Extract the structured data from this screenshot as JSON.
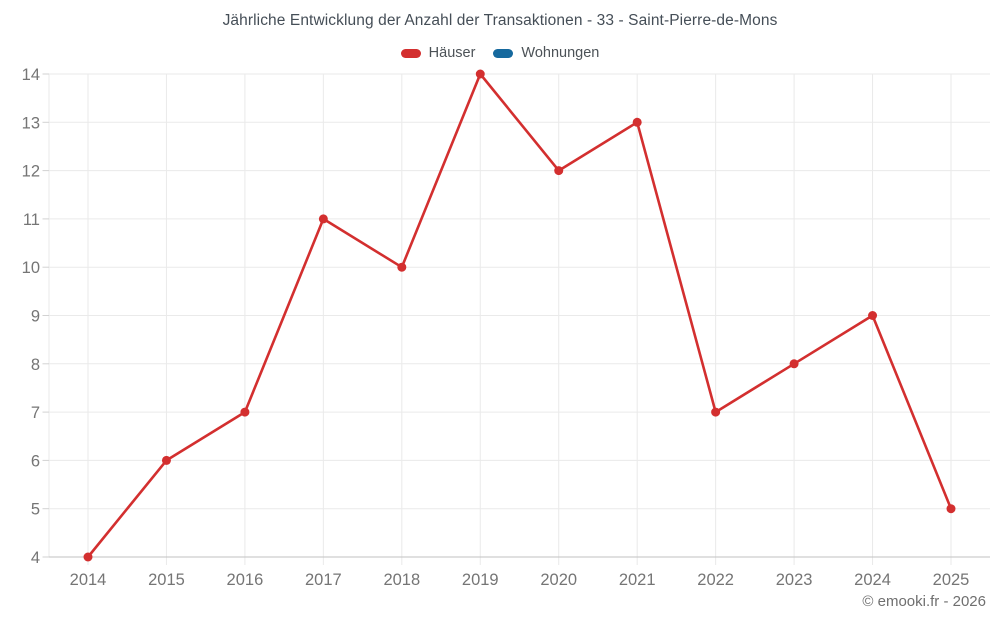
{
  "footer": {
    "copyright": "© emooki.fr - 2026"
  },
  "chart_data": {
    "type": "line",
    "title": "Jährliche Entwicklung der Anzahl der Transaktionen - 33 - Saint-Pierre-de-Mons",
    "categories": [
      "2014",
      "2015",
      "2016",
      "2017",
      "2018",
      "2019",
      "2020",
      "2021",
      "2022",
      "2023",
      "2024",
      "2025"
    ],
    "series": [
      {
        "name": "Häuser",
        "color": "#d32f2f",
        "values": [
          4,
          6,
          7,
          11,
          10,
          14,
          12,
          13,
          7,
          8,
          9,
          5
        ]
      },
      {
        "name": "Wohnungen",
        "color": "#16699e",
        "values": []
      }
    ],
    "xlabel": "",
    "ylabel": "",
    "ylim": [
      4,
      14
    ],
    "ytick_step": 1,
    "grid": true,
    "legend_position": "top",
    "colors": {
      "grid": "#eaeaea",
      "axis": "#c2c2c2",
      "tick": "#d2d2d2",
      "tick_label": "#757575"
    }
  }
}
